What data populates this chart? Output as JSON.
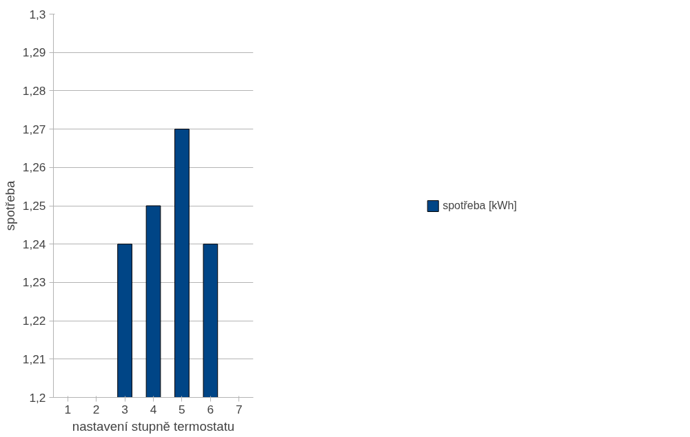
{
  "chart_data": {
    "type": "bar",
    "xlabel": "nastavení stupně termostatu",
    "ylabel": "spotřeba",
    "categories": [
      "1",
      "2",
      "3",
      "4",
      "5",
      "6",
      "7"
    ],
    "series": [
      {
        "name": "spotřeba [kWh]",
        "color": "#004586",
        "values": [
          null,
          null,
          1.24,
          1.25,
          1.27,
          1.24,
          null
        ]
      }
    ],
    "ylim": [
      1.2,
      1.3
    ],
    "yticks": [
      {
        "value": 1.2,
        "label": "1,2"
      },
      {
        "value": 1.21,
        "label": "1,21"
      },
      {
        "value": 1.22,
        "label": "1,22"
      },
      {
        "value": 1.23,
        "label": "1,23"
      },
      {
        "value": 1.24,
        "label": "1,24"
      },
      {
        "value": 1.25,
        "label": "1,25"
      },
      {
        "value": 1.26,
        "label": "1,26"
      },
      {
        "value": 1.27,
        "label": "1,27"
      },
      {
        "value": 1.28,
        "label": "1,28"
      },
      {
        "value": 1.29,
        "label": "1,29"
      },
      {
        "value": 1.3,
        "label": "1,3"
      }
    ],
    "grid": "y",
    "legend": "right"
  }
}
